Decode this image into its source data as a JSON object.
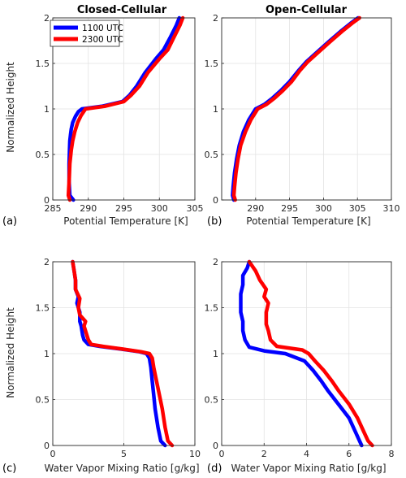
{
  "figure": {
    "titles": [
      "Closed-Cellular",
      "Open-Cellular"
    ],
    "ylabel": "Normalized Height",
    "legend": [
      "1100 UTC",
      "2300 UTC"
    ],
    "colors": {
      "1100 UTC": "#0000ff",
      "2300 UTC": "#ff0000"
    }
  },
  "chart_data": [
    {
      "type": "line",
      "panel": "(a)",
      "title": "Closed-Cellular",
      "xlabel": "Potential Temperature [K]",
      "ylabel": "Normalized Height",
      "xlim": [
        285,
        305
      ],
      "ylim": [
        0,
        2
      ],
      "xticks": [
        285,
        290,
        295,
        300,
        305
      ],
      "yticks": [
        0,
        0.5,
        1,
        1.5,
        2
      ],
      "grid": true,
      "legend_position": "top-left",
      "series": [
        {
          "name": "1100 UTC",
          "color": "#0000ff",
          "x": [
            287.9,
            287.4,
            287.3,
            287.3,
            287.35,
            287.4,
            287.5,
            287.6,
            287.8,
            288.2,
            288.6,
            289.1,
            292.0,
            294.8,
            295.8,
            296.8,
            298.0,
            299.5,
            300.6,
            301.5,
            302.4,
            302.8
          ],
          "y": [
            0.0,
            0.05,
            0.2,
            0.4,
            0.55,
            0.65,
            0.72,
            0.78,
            0.85,
            0.92,
            0.97,
            1.0,
            1.03,
            1.08,
            1.15,
            1.25,
            1.4,
            1.55,
            1.65,
            1.78,
            1.92,
            2.0
          ]
        },
        {
          "name": "2300 UTC",
          "color": "#ff0000",
          "x": [
            287.4,
            287.2,
            287.3,
            287.4,
            287.6,
            287.8,
            288.1,
            288.5,
            289.0,
            289.6,
            292.4,
            295.0,
            296.0,
            297.2,
            298.4,
            300.0,
            301.2,
            302.0,
            302.9,
            303.3
          ],
          "y": [
            0.0,
            0.05,
            0.2,
            0.4,
            0.55,
            0.65,
            0.75,
            0.85,
            0.93,
            1.0,
            1.03,
            1.08,
            1.15,
            1.25,
            1.4,
            1.55,
            1.65,
            1.78,
            1.92,
            2.0
          ]
        }
      ]
    },
    {
      "type": "line",
      "panel": "(b)",
      "title": "Open-Cellular",
      "xlabel": "Potential Temperature [K]",
      "ylabel": "",
      "xlim": [
        285,
        310
      ],
      "ylim": [
        0,
        2
      ],
      "xticks": [
        290,
        295,
        300,
        305,
        310
      ],
      "yticks": [
        0,
        0.5,
        1,
        1.5,
        2
      ],
      "grid": true,
      "series": [
        {
          "name": "1100 UTC",
          "color": "#0000ff",
          "x": [
            286.8,
            286.6,
            286.7,
            286.9,
            287.2,
            287.6,
            288.2,
            289.0,
            290.0,
            291.3,
            292.5,
            293.7,
            295.0,
            296.3,
            297.5,
            299.0,
            300.8,
            302.5,
            304.0,
            305.1
          ],
          "y": [
            0.0,
            0.05,
            0.15,
            0.3,
            0.45,
            0.6,
            0.75,
            0.88,
            1.0,
            1.05,
            1.12,
            1.2,
            1.3,
            1.42,
            1.52,
            1.62,
            1.74,
            1.85,
            1.94,
            2.0
          ]
        },
        {
          "name": "2300 UTC",
          "color": "#ff0000",
          "x": [
            287.0,
            286.8,
            286.9,
            287.1,
            287.4,
            287.8,
            288.5,
            289.3,
            290.3,
            291.6,
            292.8,
            294.0,
            295.3,
            296.5,
            297.7,
            299.2,
            301.0,
            302.7,
            304.2,
            305.3
          ],
          "y": [
            0.0,
            0.05,
            0.15,
            0.3,
            0.45,
            0.6,
            0.75,
            0.88,
            1.0,
            1.05,
            1.12,
            1.2,
            1.3,
            1.42,
            1.52,
            1.62,
            1.74,
            1.85,
            1.94,
            2.0
          ]
        }
      ]
    },
    {
      "type": "line",
      "panel": "(c)",
      "title": "",
      "xlabel": "Water Vapor Mixing Ratio [g/kg]",
      "ylabel": "Normalized Height",
      "xlim": [
        0,
        10
      ],
      "ylim": [
        0,
        2
      ],
      "xticks": [
        0,
        5,
        10
      ],
      "yticks": [
        0,
        0.5,
        1,
        1.5,
        2
      ],
      "grid": true,
      "series": [
        {
          "name": "1100 UTC",
          "color": "#0000ff",
          "x": [
            7.9,
            7.6,
            7.4,
            7.2,
            7.1,
            7.0,
            6.9,
            6.8,
            6.6,
            6.1,
            4.8,
            3.3,
            2.5,
            2.2,
            2.1,
            2.0,
            1.9,
            1.9,
            1.7,
            1.8,
            1.6,
            1.6,
            1.5,
            1.4
          ],
          "y": [
            0.0,
            0.05,
            0.2,
            0.4,
            0.55,
            0.7,
            0.85,
            0.95,
            1.0,
            1.02,
            1.05,
            1.08,
            1.1,
            1.15,
            1.2,
            1.3,
            1.35,
            1.45,
            1.55,
            1.62,
            1.7,
            1.8,
            1.9,
            2.0
          ]
        },
        {
          "name": "2300 UTC",
          "color": "#ff0000",
          "x": [
            8.4,
            8.1,
            7.9,
            7.7,
            7.5,
            7.3,
            7.1,
            7.0,
            6.8,
            6.2,
            4.9,
            3.5,
            2.7,
            2.5,
            2.4,
            2.2,
            2.3,
            1.9,
            1.8,
            1.9,
            1.6,
            1.6,
            1.5,
            1.4
          ],
          "y": [
            0.0,
            0.05,
            0.2,
            0.4,
            0.55,
            0.7,
            0.85,
            0.95,
            1.0,
            1.02,
            1.05,
            1.08,
            1.1,
            1.15,
            1.2,
            1.3,
            1.35,
            1.42,
            1.5,
            1.6,
            1.7,
            1.8,
            1.9,
            2.0
          ]
        }
      ]
    },
    {
      "type": "line",
      "panel": "(d)",
      "title": "",
      "xlabel": "Water Vapor Mixing Ratio [g/kg]",
      "ylabel": "",
      "xlim": [
        0,
        8
      ],
      "ylim": [
        0,
        2
      ],
      "xticks": [
        0,
        2,
        4,
        6,
        8
      ],
      "yticks": [
        0,
        0.5,
        1,
        1.5,
        2
      ],
      "grid": true,
      "series": [
        {
          "name": "1100 UTC",
          "color": "#0000ff",
          "x": [
            6.6,
            6.5,
            6.3,
            6.0,
            5.5,
            5.0,
            4.7,
            4.3,
            3.9,
            3.0,
            2.0,
            1.3,
            1.1,
            1.0,
            1.0,
            0.9,
            0.9,
            0.9,
            1.0,
            1.0,
            1.2,
            1.3
          ],
          "y": [
            0.0,
            0.05,
            0.15,
            0.3,
            0.45,
            0.6,
            0.7,
            0.82,
            0.92,
            1.0,
            1.03,
            1.07,
            1.15,
            1.25,
            1.35,
            1.45,
            1.55,
            1.65,
            1.75,
            1.85,
            1.93,
            2.0
          ]
        },
        {
          "name": "2300 UTC",
          "color": "#ff0000",
          "x": [
            7.1,
            6.9,
            6.7,
            6.4,
            6.0,
            5.5,
            5.2,
            4.8,
            4.4,
            4.1,
            3.8,
            2.6,
            2.3,
            2.2,
            2.1,
            2.1,
            2.2,
            2.0,
            2.1,
            1.8,
            1.6,
            1.3
          ],
          "y": [
            0.0,
            0.05,
            0.15,
            0.3,
            0.45,
            0.6,
            0.7,
            0.82,
            0.92,
            1.0,
            1.04,
            1.08,
            1.15,
            1.25,
            1.32,
            1.45,
            1.55,
            1.62,
            1.7,
            1.8,
            1.9,
            2.0
          ]
        }
      ]
    }
  ]
}
